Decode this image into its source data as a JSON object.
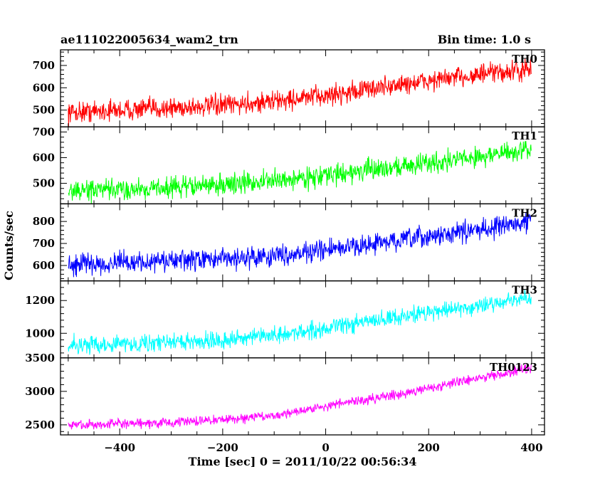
{
  "header": {
    "title": "ae111022005634_wam2_trn",
    "bin_time": "Bin time: 1.0 s"
  },
  "xlabel": "Time [sec] 0 = 2011/10/22 00:56:34",
  "ylabel": "Counts/sec",
  "chart_data": {
    "type": "line",
    "xlim": [
      -515,
      425
    ],
    "x_ticks": [
      -400,
      -200,
      0,
      200,
      400
    ],
    "x_tick_labels": [
      "−400",
      "−200",
      "0",
      "200",
      "400"
    ],
    "grid": false,
    "panels": [
      {
        "name": "TH0",
        "color": "#ff0000",
        "ylim": [
          425,
          770
        ],
        "ticks": [
          500,
          600,
          700
        ],
        "tick_labels": [
          "500",
          "600",
          "700"
        ],
        "x": [
          -500,
          -400,
          -300,
          -200,
          -100,
          0,
          100,
          200,
          300,
          400
        ],
        "values": [
          490,
          500,
          510,
          520,
          540,
          565,
          600,
          630,
          660,
          680
        ],
        "noise": 40
      },
      {
        "name": "TH1",
        "color": "#00ff00",
        "ylim": [
          420,
          720
        ],
        "ticks": [
          500,
          600,
          700
        ],
        "tick_labels": [
          "500",
          "600",
          "700"
        ],
        "x": [
          -500,
          -400,
          -300,
          -200,
          -100,
          0,
          100,
          200,
          300,
          400
        ],
        "values": [
          470,
          475,
          485,
          495,
          510,
          530,
          555,
          580,
          605,
          630
        ],
        "noise": 35
      },
      {
        "name": "TH2",
        "color": "#0000ff",
        "ylim": [
          530,
          880
        ],
        "ticks": [
          600,
          700,
          800
        ],
        "tick_labels": [
          "600",
          "700",
          "800"
        ],
        "x": [
          -500,
          -400,
          -300,
          -200,
          -100,
          0,
          100,
          200,
          300,
          400
        ],
        "values": [
          605,
          612,
          620,
          630,
          645,
          670,
          700,
          730,
          765,
          800
        ],
        "noise": 40
      },
      {
        "name": "TH3",
        "color": "#00ffff",
        "ylim": [
          850,
          1320
        ],
        "ticks": [
          1000,
          1200
        ],
        "tick_labels": [
          "1000",
          "1200"
        ],
        "x": [
          -500,
          -400,
          -300,
          -200,
          -100,
          0,
          100,
          200,
          300,
          400
        ],
        "values": [
          930,
          935,
          945,
          960,
          985,
          1030,
          1080,
          1130,
          1170,
          1215
        ],
        "noise": 45
      },
      {
        "name": "TH0123",
        "color": "#ff00ff",
        "ylim": [
          2350,
          3500
        ],
        "ticks": [
          2500,
          3000,
          3500
        ],
        "tick_labels": [
          "2500",
          "3000",
          "3500"
        ],
        "x": [
          -500,
          -400,
          -300,
          -200,
          -100,
          0,
          100,
          200,
          300,
          400
        ],
        "values": [
          2500,
          2510,
          2530,
          2580,
          2640,
          2780,
          2900,
          3050,
          3200,
          3350
        ],
        "noise": 60
      }
    ]
  }
}
